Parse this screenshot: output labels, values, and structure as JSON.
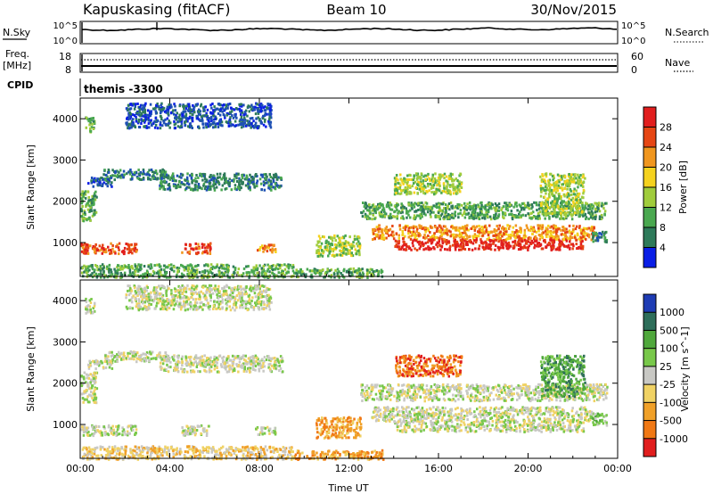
{
  "header": {
    "station": "Kapuskasing (fitACF)",
    "beam": "Beam 10",
    "date": "30/Nov/2015"
  },
  "summary_panel": {
    "nsky_label": "N.Sky",
    "nsky_ticks": [
      "10^5",
      "10^0"
    ],
    "nsearch_label": "N.Search",
    "nsearch_ticks": [
      "10^5",
      "10^0"
    ],
    "freq_label": "Freq.",
    "freq_unit": "[MHz]",
    "freq_ticks": [
      "18",
      "8"
    ],
    "nave_label": "Nave",
    "nave_ticks": [
      "60",
      "0"
    ],
    "cpid_label": "CPID",
    "cpid_value": "themis -3300"
  },
  "colors": {
    "power": [
      "#0a1ee6",
      "#1e50b4",
      "#2e7a5a",
      "#4aa850",
      "#a0cc3c",
      "#f5d21e",
      "#f0961e",
      "#e64614",
      "#e11e1e"
    ],
    "velocity": [
      "#1e3cb4",
      "#2e6e5a",
      "#50a83c",
      "#78c84a",
      "#c8c8c4",
      "#f0d264",
      "#f0a028",
      "#f07814",
      "#e11e1e"
    ],
    "ground_scatter": "#c8c8c4"
  },
  "chart_data": [
    {
      "type": "heatmap",
      "name": "power",
      "xlabel": "",
      "ylabel": "Slant Range [km]",
      "x_ticks": [
        "00:00",
        "04:00",
        "08:00",
        "12:00",
        "16:00",
        "20:00",
        "00:00"
      ],
      "xlim_hours": [
        0,
        24
      ],
      "ylim_km": [
        180,
        4500
      ],
      "y_ticks": [
        1000,
        2000,
        3000,
        4000
      ],
      "colorbar_label": "Power [dB]",
      "colorbar_ticks": [
        "4",
        "8",
        "12",
        "16",
        "20",
        "24",
        "28"
      ],
      "bands": [
        {
          "t": [
            0.0,
            0.7
          ],
          "r": [
            1550,
            2300
          ],
          "level": 3
        },
        {
          "t": [
            0.3,
            1.4
          ],
          "r": [
            2380,
            2600
          ],
          "level": 1
        },
        {
          "t": [
            1.0,
            4.0
          ],
          "r": [
            2550,
            2800
          ],
          "level": 2
        },
        {
          "t": [
            3.5,
            9.0
          ],
          "r": [
            2300,
            2700
          ],
          "level": 2
        },
        {
          "t": [
            0.0,
            2.5
          ],
          "r": [
            760,
            1010
          ],
          "level": 7
        },
        {
          "t": [
            4.5,
            5.8
          ],
          "r": [
            760,
            1010
          ],
          "level": 7
        },
        {
          "t": [
            7.8,
            8.7
          ],
          "r": [
            780,
            980
          ],
          "level": 6
        },
        {
          "t": [
            0.0,
            9.5
          ],
          "r": [
            180,
            500
          ],
          "level": 3
        },
        {
          "t": [
            9.5,
            13.5
          ],
          "r": [
            180,
            400
          ],
          "level": 3
        },
        {
          "t": [
            10.5,
            12.5
          ],
          "r": [
            700,
            1200
          ],
          "level": 4
        },
        {
          "t": [
            12.5,
            23.5
          ],
          "r": [
            1600,
            2000
          ],
          "level": 3
        },
        {
          "t": [
            13.0,
            23.0
          ],
          "r": [
            1100,
            1450
          ],
          "level": 6
        },
        {
          "t": [
            14.0,
            22.5
          ],
          "r": [
            850,
            1100
          ],
          "level": 8
        },
        {
          "t": [
            14.0,
            17.0
          ],
          "r": [
            2200,
            2700
          ],
          "level": 4
        },
        {
          "t": [
            20.5,
            22.5
          ],
          "r": [
            1700,
            2700
          ],
          "level": 4
        },
        {
          "t": [
            0.2,
            0.6
          ],
          "r": [
            3700,
            4100
          ],
          "level": 3
        },
        {
          "t": [
            2.0,
            8.5
          ],
          "r": [
            3800,
            4400
          ],
          "level": 1
        },
        {
          "t": [
            22.8,
            23.5
          ],
          "r": [
            1000,
            1300
          ],
          "level": 2
        }
      ]
    },
    {
      "type": "heatmap",
      "name": "velocity",
      "xlabel": "Time UT",
      "ylabel": "Slant Range [km]",
      "x_ticks": [
        "00:00",
        "04:00",
        "08:00",
        "12:00",
        "16:00",
        "20:00",
        "00:00"
      ],
      "xlim_hours": [
        0,
        24
      ],
      "ylim_km": [
        180,
        4500
      ],
      "y_ticks": [
        1000,
        2000,
        3000,
        4000
      ],
      "colorbar_label": "Velocity [m s^-1]",
      "colorbar_ticks": [
        "1000",
        "500",
        "100",
        "25",
        "-25",
        "-100",
        "-500",
        "-1000"
      ],
      "bands": [
        {
          "t": [
            0.0,
            0.7
          ],
          "r": [
            1550,
            2300
          ],
          "level": 4
        },
        {
          "t": [
            0.3,
            1.4
          ],
          "r": [
            2380,
            2600
          ],
          "level": 4
        },
        {
          "t": [
            1.0,
            4.0
          ],
          "r": [
            2550,
            2800
          ],
          "level": 4
        },
        {
          "t": [
            3.5,
            9.0
          ],
          "r": [
            2300,
            2700
          ],
          "level": 4
        },
        {
          "t": [
            0.0,
            2.5
          ],
          "r": [
            760,
            1010
          ],
          "level": 4
        },
        {
          "t": [
            4.5,
            5.8
          ],
          "r": [
            760,
            1010
          ],
          "level": 4
        },
        {
          "t": [
            7.8,
            8.7
          ],
          "r": [
            780,
            980
          ],
          "level": 4
        },
        {
          "t": [
            0.0,
            9.5
          ],
          "r": [
            180,
            500
          ],
          "level": 5
        },
        {
          "t": [
            9.5,
            13.5
          ],
          "r": [
            180,
            400
          ],
          "level": 6
        },
        {
          "t": [
            10.5,
            12.5
          ],
          "r": [
            700,
            1200
          ],
          "level": 6
        },
        {
          "t": [
            12.5,
            23.5
          ],
          "r": [
            1600,
            2000
          ],
          "level": 4
        },
        {
          "t": [
            13.0,
            23.0
          ],
          "r": [
            1100,
            1450
          ],
          "level": 4
        },
        {
          "t": [
            14.0,
            22.5
          ],
          "r": [
            850,
            1100
          ],
          "level": 4
        },
        {
          "t": [
            14.0,
            17.0
          ],
          "r": [
            2200,
            2700
          ],
          "level": 7
        },
        {
          "t": [
            20.5,
            22.5
          ],
          "r": [
            1700,
            2700
          ],
          "level": 2
        },
        {
          "t": [
            0.2,
            0.6
          ],
          "r": [
            3700,
            4100
          ],
          "level": 4
        },
        {
          "t": [
            2.0,
            8.5
          ],
          "r": [
            3800,
            4400
          ],
          "level": 4
        },
        {
          "t": [
            22.8,
            23.5
          ],
          "r": [
            1000,
            1300
          ],
          "level": 3
        }
      ]
    }
  ]
}
